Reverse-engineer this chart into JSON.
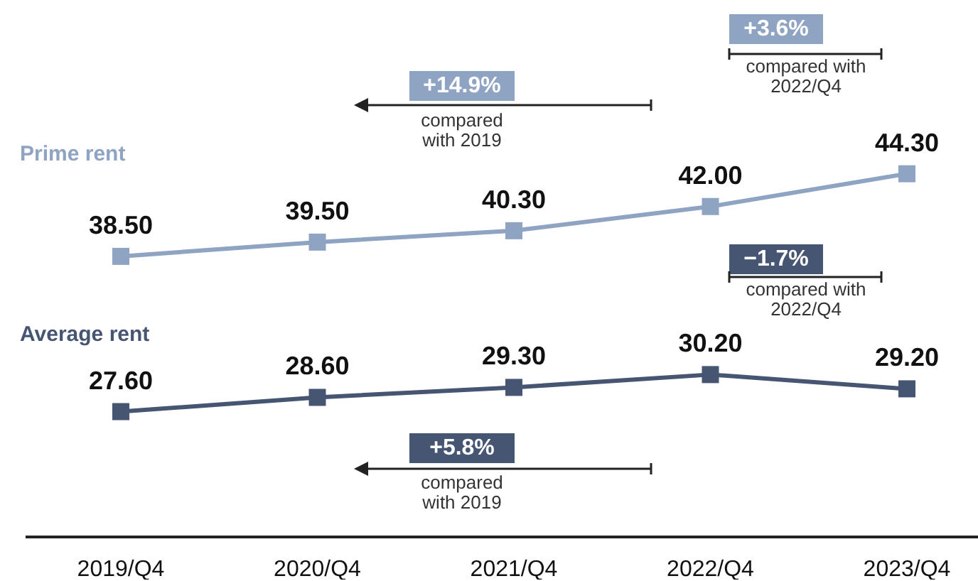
{
  "chart_data": {
    "type": "line",
    "categories": [
      "2019/Q4",
      "2020/Q4",
      "2021/Q4",
      "2022/Q4",
      "2023/Q4"
    ],
    "series": [
      {
        "name": "Prime rent",
        "color": "#8fa3c2",
        "values": [
          38.5,
          39.5,
          40.3,
          42.0,
          44.3
        ],
        "value_labels": [
          "38.50",
          "39.50",
          "40.30",
          "42.00",
          "44.30"
        ]
      },
      {
        "name": "Average rent",
        "color": "#465672",
        "values": [
          27.6,
          28.6,
          29.3,
          30.2,
          29.2
        ],
        "value_labels": [
          "27.60",
          "28.60",
          "29.30",
          "30.20",
          "29.20"
        ]
      }
    ],
    "marker": "square",
    "line_style": "solid",
    "legend": false,
    "annotations": [
      "+14.9%",
      "compared with 2019",
      "+3.6%",
      "compared with 2022/Q4",
      "−1.7%",
      "compared with 2022/Q4",
      "+5.8%",
      "compared with 2019"
    ]
  }
}
